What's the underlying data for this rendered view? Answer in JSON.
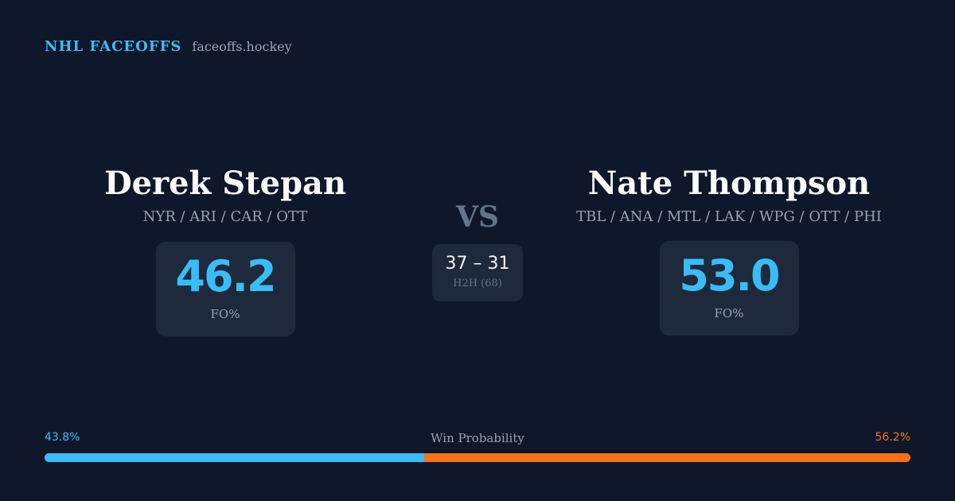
{
  "brand": {
    "name": "NHL FACEOFFS",
    "url": "faceoffs.hockey"
  },
  "players": [
    {
      "name": "Derek Stepan",
      "teams": "NYR / ARI / CAR / OTT",
      "fo_pct": "46.2",
      "fo_label": "FO%"
    },
    {
      "name": "Nate Thompson",
      "teams": "TBL / ANA / MTL / LAK / WPG / OTT / PHI",
      "fo_pct": "53.0",
      "fo_label": "FO%"
    }
  ],
  "vs_label": "VS",
  "head_to_head": {
    "score": "37 – 31",
    "label": "H2H (68)"
  },
  "win_probability": {
    "title": "Win Probability",
    "left_label": "43.8%",
    "right_label": "56.2%",
    "left_value": 0.438,
    "right_value": 0.562
  },
  "colors": {
    "background": "#0f172a",
    "accent_left": "#38bdf8",
    "accent_right": "#f97316",
    "card": "#1e293b"
  }
}
